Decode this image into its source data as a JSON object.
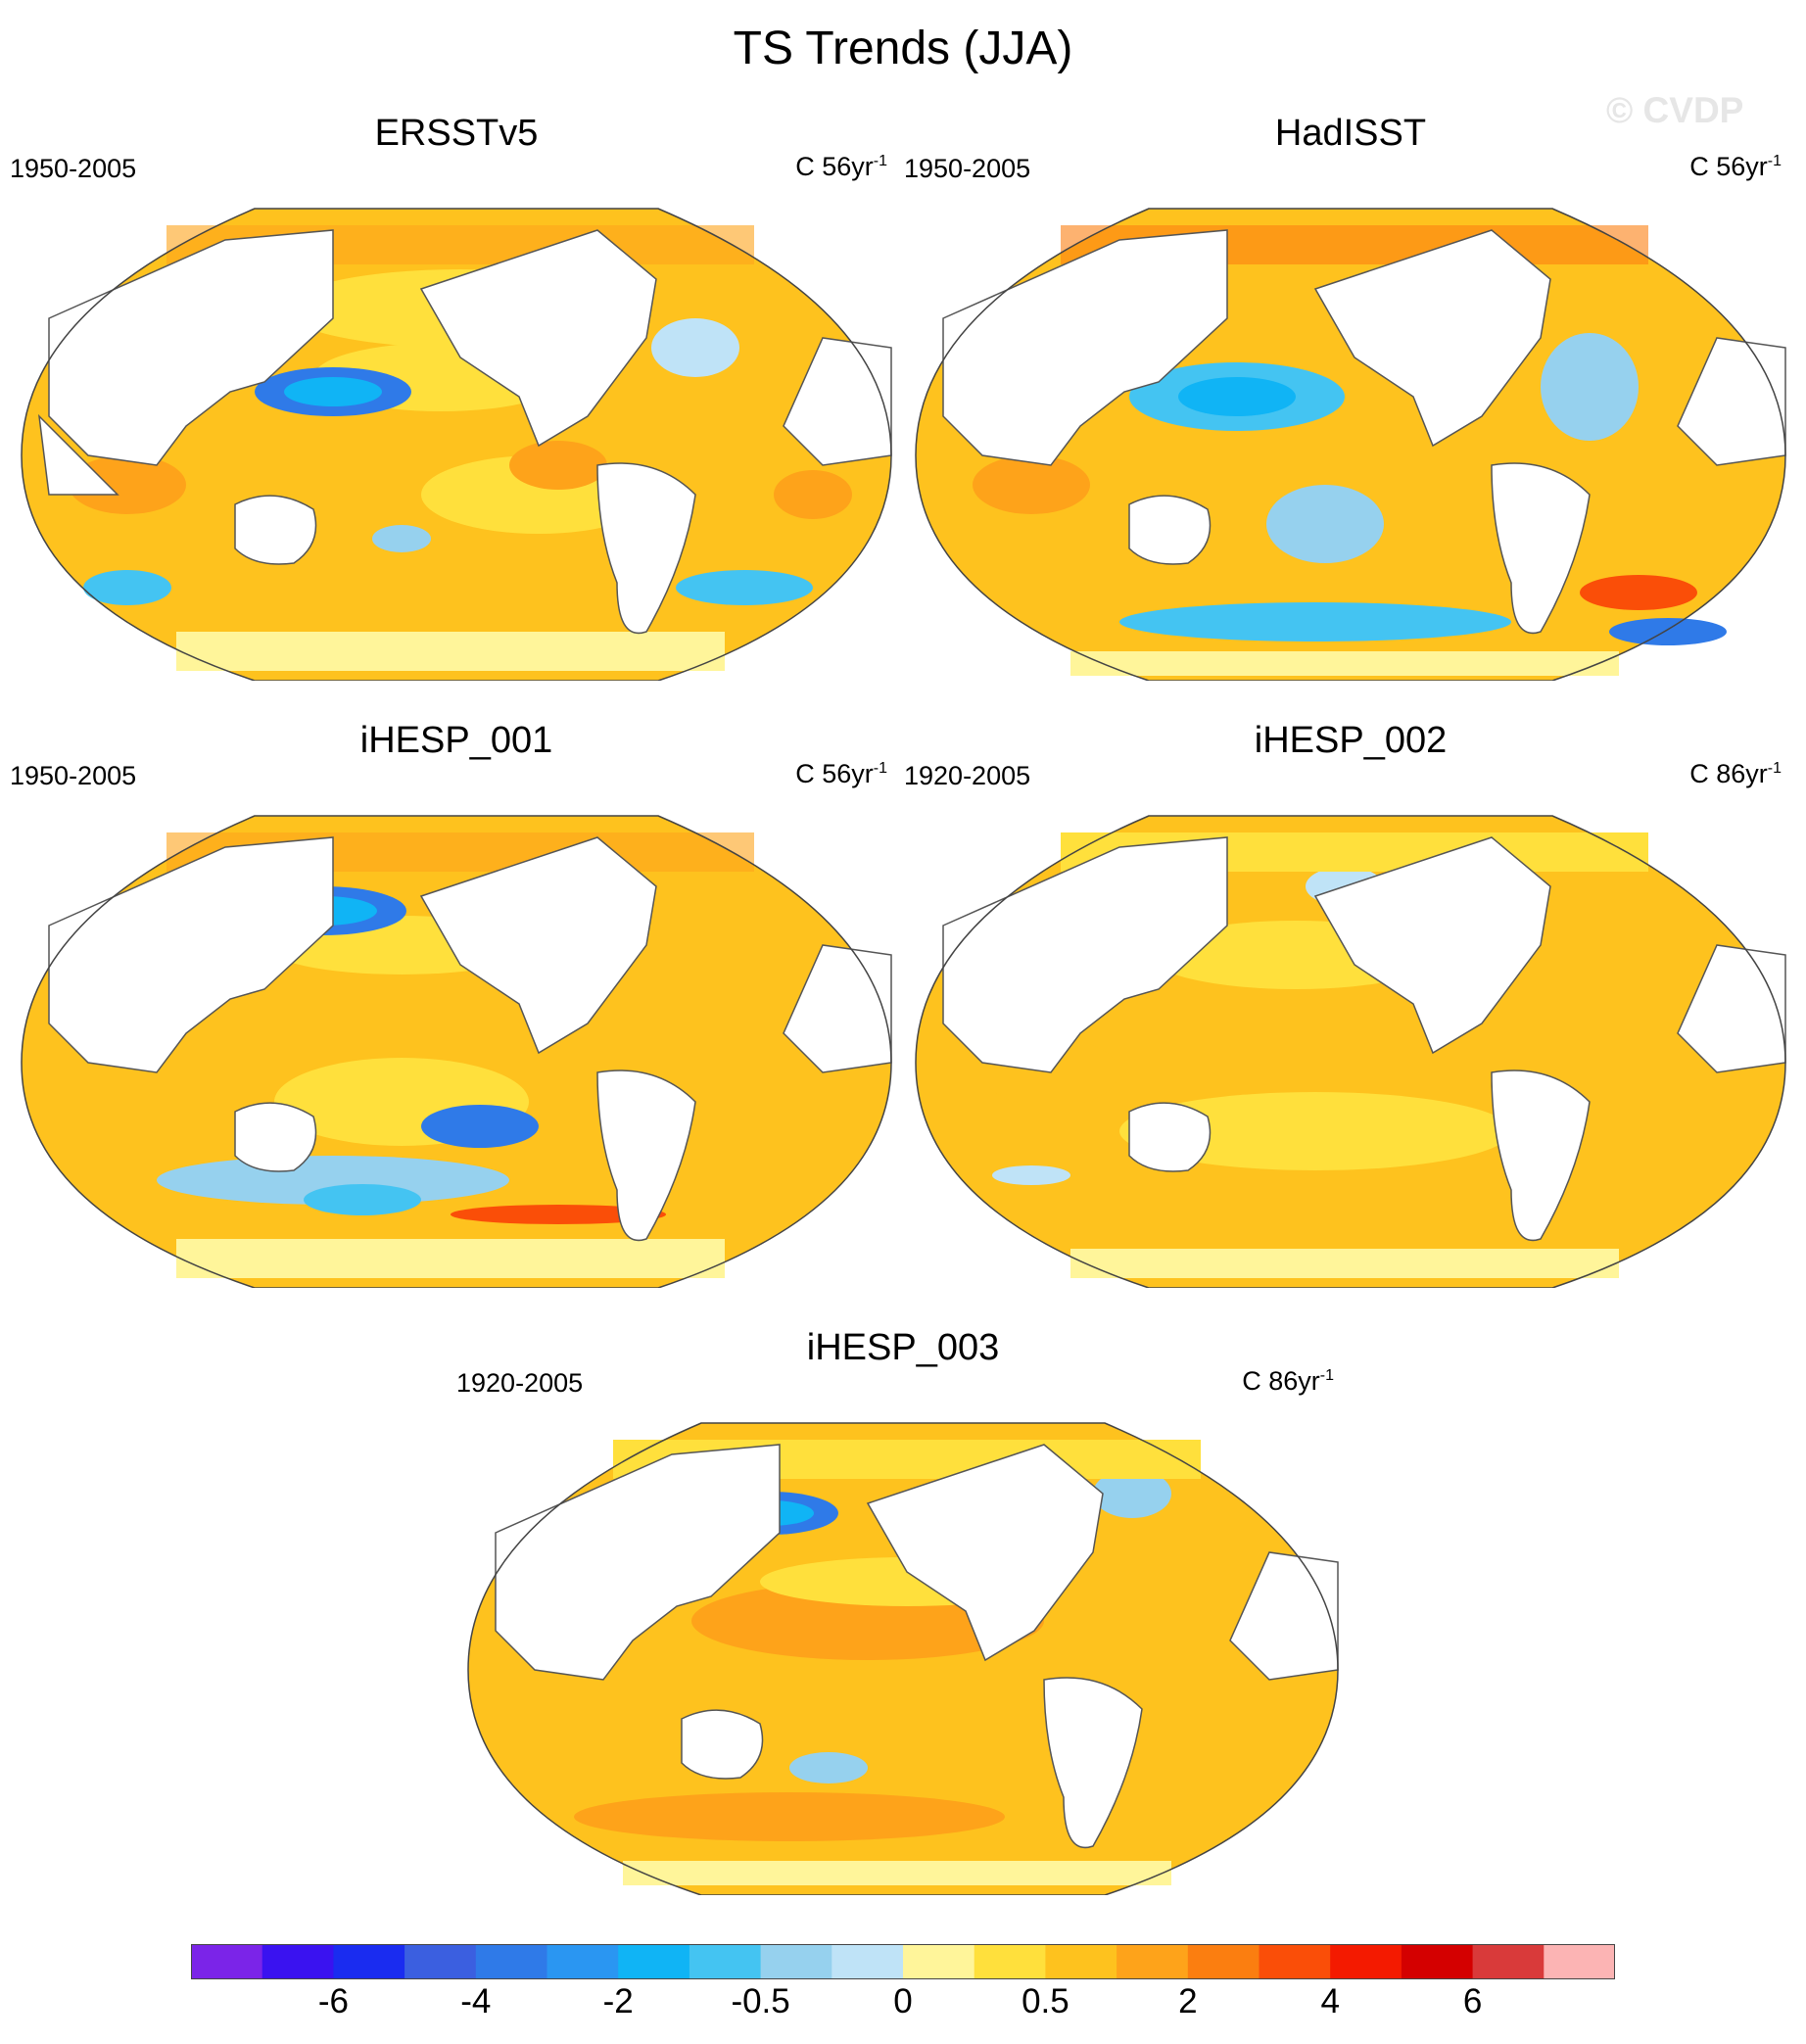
{
  "title": "TS Trends (JJA)",
  "watermark": "© CVDP",
  "panels": [
    {
      "name": "ERSSTv5",
      "period": "1950-2005",
      "units": "C 56yr",
      "units_sup": "-1"
    },
    {
      "name": "HadISST",
      "period": "1950-2005",
      "units": "C 56yr",
      "units_sup": "-1"
    },
    {
      "name": "iHESP_001",
      "period": "1950-2005",
      "units": "C 56yr",
      "units_sup": "-1"
    },
    {
      "name": "iHESP_002",
      "period": "1920-2005",
      "units": "C 86yr",
      "units_sup": "-1"
    },
    {
      "name": "iHESP_003",
      "period": "1920-2005",
      "units": "C 86yr",
      "units_sup": "-1"
    }
  ],
  "colorbar": {
    "colors": [
      "#7b24e8",
      "#3a12f0",
      "#1a2cf0",
      "#3b5fe0",
      "#2f7ae8",
      "#2a96f2",
      "#10b4f5",
      "#44c4f2",
      "#96d1ee",
      "#bfe3f7",
      "#fff59a",
      "#ffe03c",
      "#fec21e",
      "#fea31a",
      "#fb7e10",
      "#fa4e08",
      "#f41a00",
      "#d40000",
      "#d93a3a",
      "#fcb4b4"
    ],
    "labels": [
      "-6",
      "-4",
      "-2",
      "-0.5",
      "0",
      "0.5",
      "2",
      "4",
      "6"
    ]
  }
}
